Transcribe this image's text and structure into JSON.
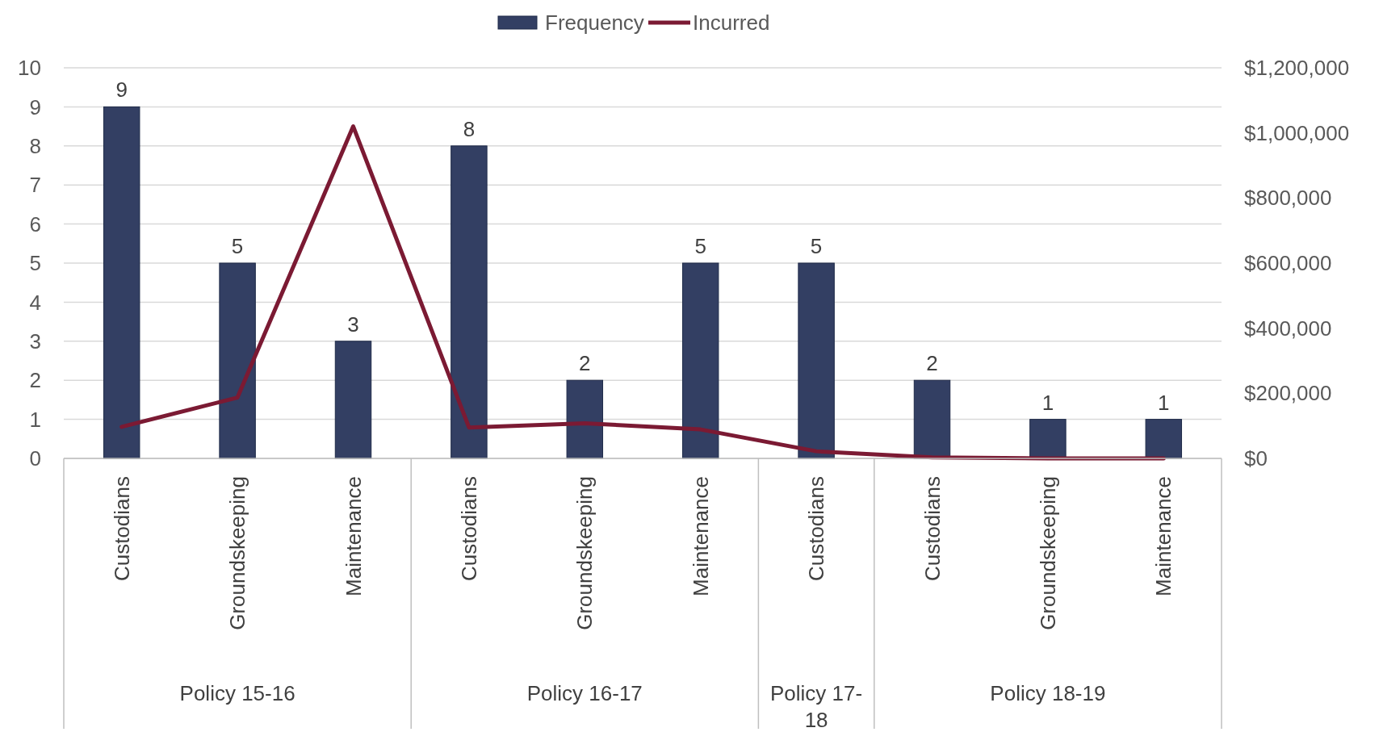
{
  "chart_data": {
    "type": "bar",
    "categories": [
      "Custodians",
      "Groundskeeping",
      "Maintenance",
      "Custodians",
      "Groundskeeping",
      "Maintenance",
      "Custodians",
      "Custodians",
      "Groundskeeping",
      "Maintenance"
    ],
    "series": [
      {
        "name": "Frequency",
        "color": "#333f63",
        "values": [
          9,
          5,
          3,
          8,
          2,
          5,
          5,
          2,
          1,
          1
        ],
        "value_labels": [
          "9",
          "5",
          "3",
          "8",
          "2",
          "5",
          "5",
          "2",
          "1",
          "1"
        ]
      },
      {
        "name": "Incurred",
        "type": "line",
        "axis": "y2",
        "color": "#7b1a33",
        "values": [
          97000,
          187000,
          1020000,
          95000,
          108000,
          89000,
          22000,
          3000,
          0,
          0
        ]
      }
    ],
    "ylim": [
      0,
      10
    ],
    "yticks": [
      0,
      1,
      2,
      3,
      4,
      5,
      6,
      7,
      8,
      9,
      10
    ],
    "y2lim": [
      0,
      1200000
    ],
    "y2ticks": [
      {
        "value": 0,
        "label": "$0"
      },
      {
        "value": 200000,
        "label": "$200,000"
      },
      {
        "value": 400000,
        "label": "$400,000"
      },
      {
        "value": 600000,
        "label": "$600,000"
      },
      {
        "value": 800000,
        "label": "$800,000"
      },
      {
        "value": 1000000,
        "label": "$1,000,000"
      },
      {
        "value": 1200000,
        "label": "$1,200,000"
      }
    ],
    "grid": "y",
    "legend": "top",
    "marker": "none",
    "line_style": "solid",
    "annotations": [
      "Policy 15-16",
      "Policy 16-17",
      "Policy 17-18",
      "Policy 18-19"
    ]
  }
}
